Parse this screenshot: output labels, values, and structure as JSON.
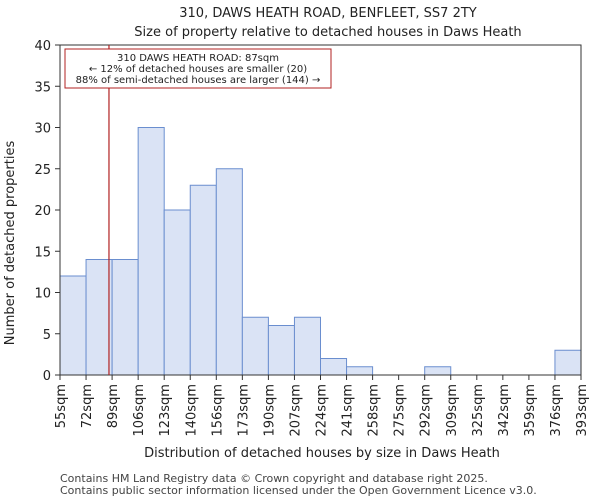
{
  "chart_data": {
    "type": "bar",
    "title_line1": "310, DAWS HEATH ROAD, BENFLEET, SS7 2TY",
    "title_line2": "Size of property relative to detached houses in Daws Heath",
    "xlabel": "Distribution of detached houses by size in Daws Heath",
    "ylabel": "Number of detached properties",
    "bin_edges": [
      55,
      72,
      89,
      106,
      123,
      140,
      156,
      173,
      190,
      207,
      224,
      241,
      258,
      275,
      292,
      309,
      325,
      342,
      359,
      376,
      393
    ],
    "x_tick_labels": [
      "55sqm",
      "72sqm",
      "89sqm",
      "106sqm",
      "123sqm",
      "140sqm",
      "156sqm",
      "173sqm",
      "190sqm",
      "207sqm",
      "224sqm",
      "241sqm",
      "258sqm",
      "275sqm",
      "292sqm",
      "309sqm",
      "325sqm",
      "342sqm",
      "359sqm",
      "376sqm",
      "393sqm"
    ],
    "values": [
      12,
      14,
      14,
      30,
      20,
      23,
      25,
      7,
      6,
      7,
      2,
      1,
      0,
      0,
      1,
      0,
      0,
      0,
      0,
      3
    ],
    "ylim": [
      0,
      40
    ],
    "y_ticks": [
      0,
      5,
      10,
      15,
      20,
      25,
      30,
      35,
      40
    ],
    "grid": false,
    "bar_fill": "#dae3f5",
    "bar_edge": "#6a8ecf",
    "marker": {
      "value_sqm": 87,
      "bin_position": 1.88,
      "color": "#b22222"
    },
    "annotation": {
      "line1": "310 DAWS HEATH ROAD: 87sqm",
      "line2": "← 12% of detached houses are smaller (20)",
      "line3": "88% of semi-detached houses are larger (144) →",
      "border_color": "#b22222"
    }
  },
  "footer": {
    "line1": "Contains HM Land Registry data © Crown copyright and database right 2025.",
    "line2": "Contains public sector information licensed under the Open Government Licence v3.0."
  }
}
